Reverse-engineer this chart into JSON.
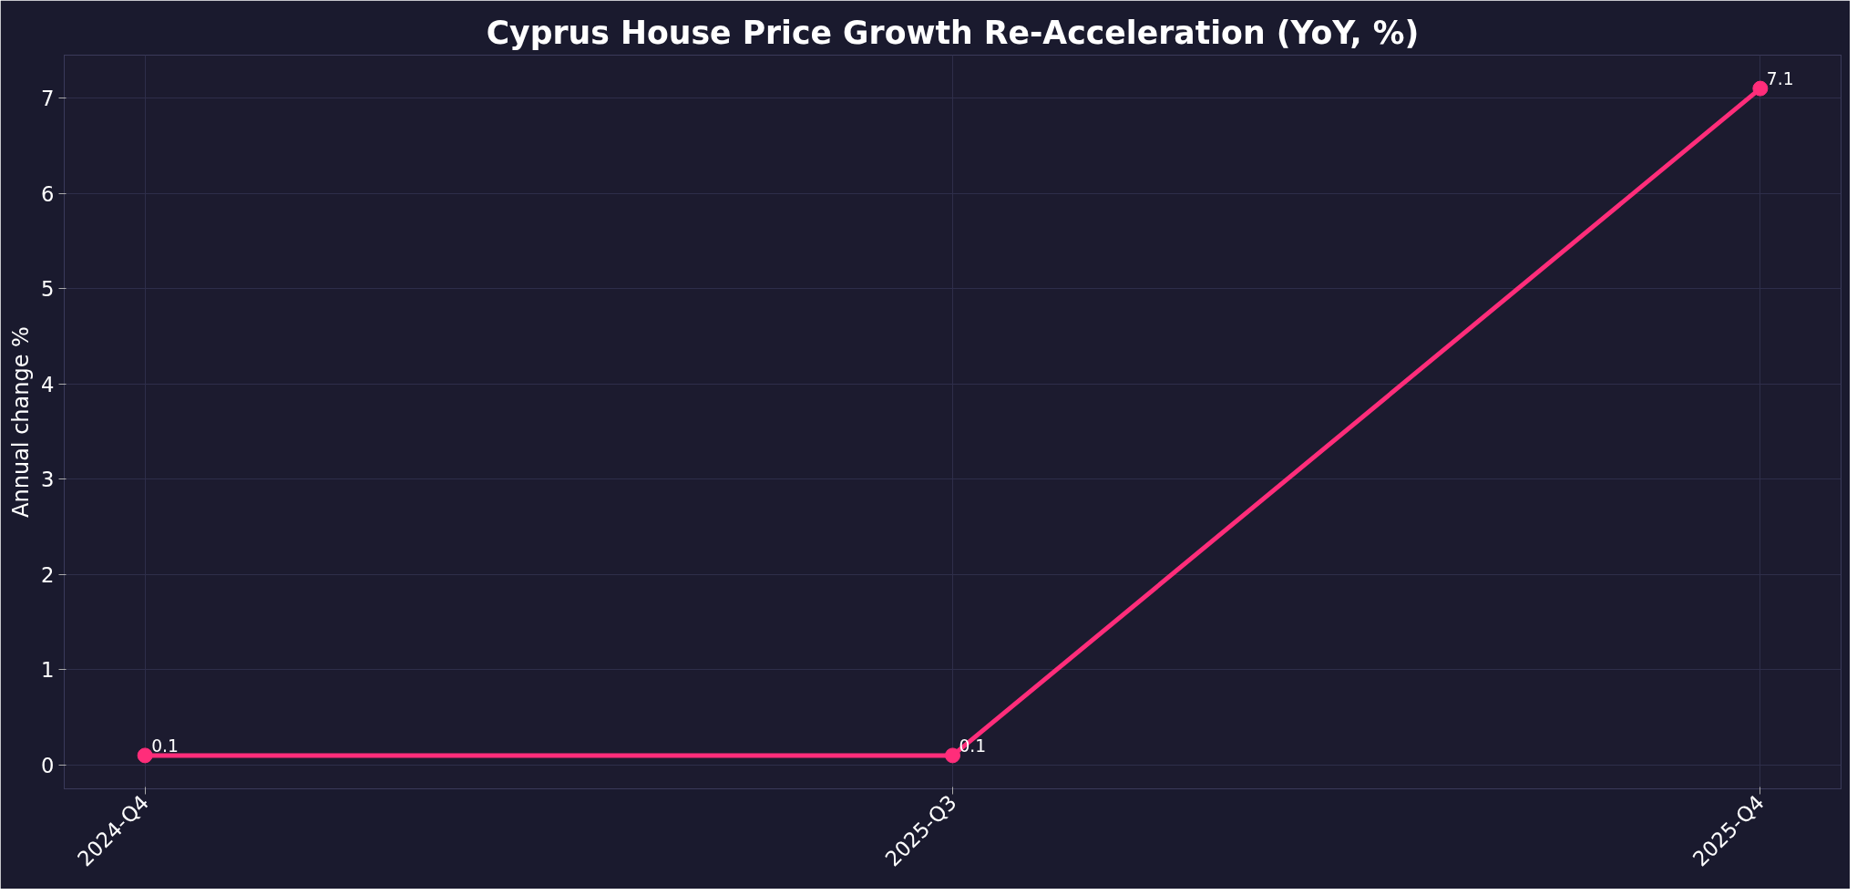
{
  "chart_data": {
    "type": "line",
    "title": "Cyprus House Price Growth Re-Acceleration (YoY, %)",
    "ylabel": "Annual change %",
    "categories": [
      "2024-Q4",
      "2025-Q3",
      "2025-Q4"
    ],
    "series": [
      {
        "color": "#ff2d7a",
        "values": [
          0.1,
          0.1,
          7.1
        ]
      }
    ],
    "ylim": [
      -0.25,
      7.45
    ],
    "yticks": [
      0,
      1,
      2,
      3,
      4,
      5,
      6,
      7
    ],
    "grid": true,
    "marker": "circle",
    "line_style": "solid",
    "data_labels": true
  }
}
